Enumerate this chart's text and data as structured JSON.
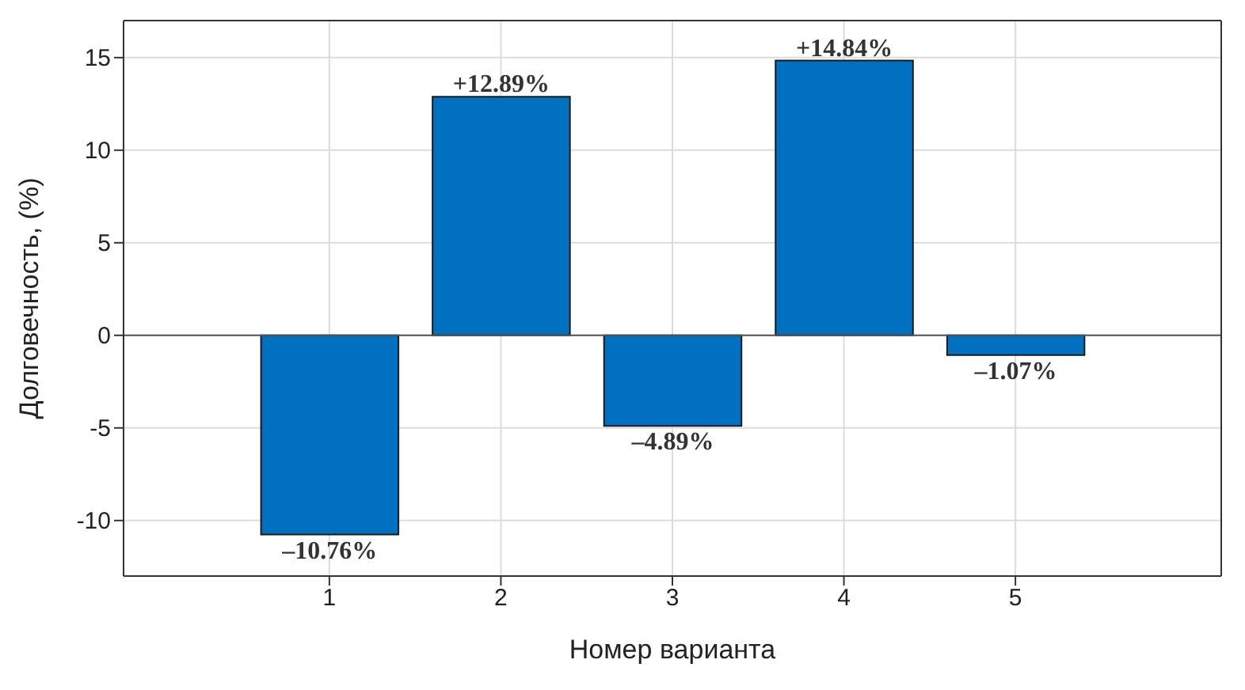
{
  "chart_data": {
    "type": "bar",
    "xlabel": "Номер варианта",
    "ylabel": "Долговечность, (%)",
    "x": [
      1,
      2,
      3,
      4,
      5
    ],
    "values": [
      -10.76,
      12.89,
      -4.89,
      14.84,
      -1.07
    ],
    "value_labels": [
      "–10.76%",
      "+12.89%",
      "–4.89%",
      "+14.84%",
      "–1.07%"
    ],
    "color": "#0070c0",
    "xlim": [
      -0.2,
      6.2
    ],
    "xticks": [
      1,
      2,
      3,
      4,
      5
    ],
    "ylim": [
      -13,
      17
    ],
    "yticks": [
      -10,
      -5,
      0,
      5,
      10,
      15
    ],
    "grid": true
  }
}
